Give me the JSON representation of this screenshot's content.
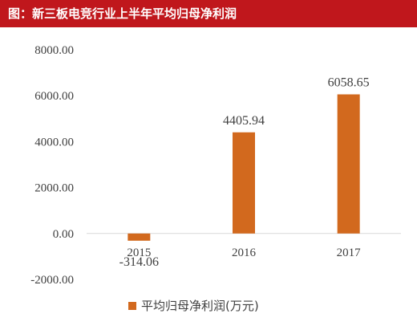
{
  "title": "图：新三板电竞行业上半年平均归母净利润",
  "chart_data": {
    "type": "bar",
    "categories": [
      "2015",
      "2016",
      "2017"
    ],
    "series": [
      {
        "name": "平均归母净利润(万元)",
        "values": [
          -314.06,
          4405.94,
          6058.65
        ]
      }
    ],
    "data_labels": [
      "-314.06",
      "4405.94",
      "6058.65"
    ],
    "y_ticks": [
      -2000,
      0,
      2000,
      4000,
      6000,
      8000
    ],
    "y_tick_labels": [
      "-2000.00",
      "0.00",
      "2000.00",
      "4000.00",
      "6000.00",
      "8000.00"
    ],
    "ylim": [
      -2000,
      8000
    ],
    "grid": false,
    "legend_position": "bottom",
    "colors": {
      "bar": "#d2691e",
      "title_bg": "#c0171c",
      "title_text": "#ffffff",
      "axis": "#d9d9d9",
      "text": "#404040"
    }
  }
}
